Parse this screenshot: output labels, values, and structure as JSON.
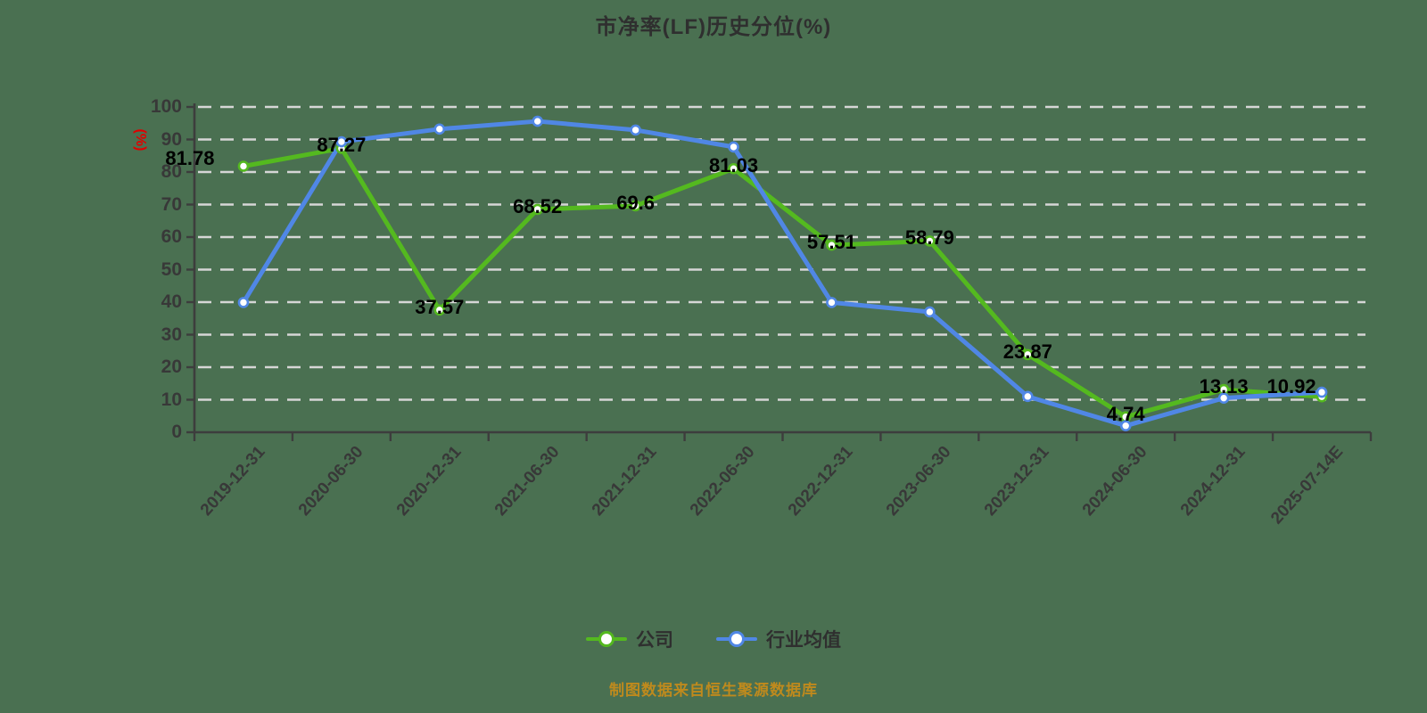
{
  "title": "市净率(LF)历史分位(%)",
  "footer": {
    "text": "制图数据来自恒生聚源数据库"
  },
  "colors": {
    "background": "#4a7051",
    "grid": "#d6d6d6",
    "axis": "#3d3d3d",
    "tick_label": "#383838",
    "data_label": "#000000",
    "title": "#2f2f2f",
    "ylabel": "#e00000",
    "footer": "#bf8a1d",
    "legend_text": "#2f2f2f",
    "series_company": "#54b91f",
    "series_industry": "#5087e5"
  },
  "chart_data": {
    "type": "line",
    "title": "市净率(LF)历史分位(%)",
    "xlabel": "",
    "ylabel": "(%)",
    "ylim": [
      0,
      100
    ],
    "ytick_step": 10,
    "grid": true,
    "grid_style": "dashed",
    "legend_position": "bottom",
    "marker": "circle-white-fill",
    "categories": [
      "2019-12-31",
      "2020-06-30",
      "2020-12-31",
      "2021-06-30",
      "2021-12-31",
      "2022-06-30",
      "2022-12-31",
      "2023-06-30",
      "2023-12-31",
      "2024-06-30",
      "2024-12-31",
      "2025-07-14E"
    ],
    "series": [
      {
        "name": "公司",
        "color": "#54b91f",
        "labeled": true,
        "values": [
          81.78,
          87.27,
          37.57,
          68.52,
          69.6,
          81.03,
          57.51,
          58.79,
          23.87,
          4.74,
          13.13,
          10.92
        ],
        "labels": [
          "81.78",
          "87.27",
          "37.57",
          "68.52",
          "69.6",
          "81.03",
          "57.51",
          "58.79",
          "23.87",
          "4.74",
          "13.13",
          "10.92"
        ]
      },
      {
        "name": "行业均值",
        "color": "#5087e5",
        "labeled": false,
        "values": [
          39.9,
          89.3,
          93.2,
          95.6,
          92.9,
          87.7,
          39.9,
          37.0,
          11.0,
          2.0,
          10.5,
          12.3
        ],
        "labels": []
      }
    ]
  }
}
